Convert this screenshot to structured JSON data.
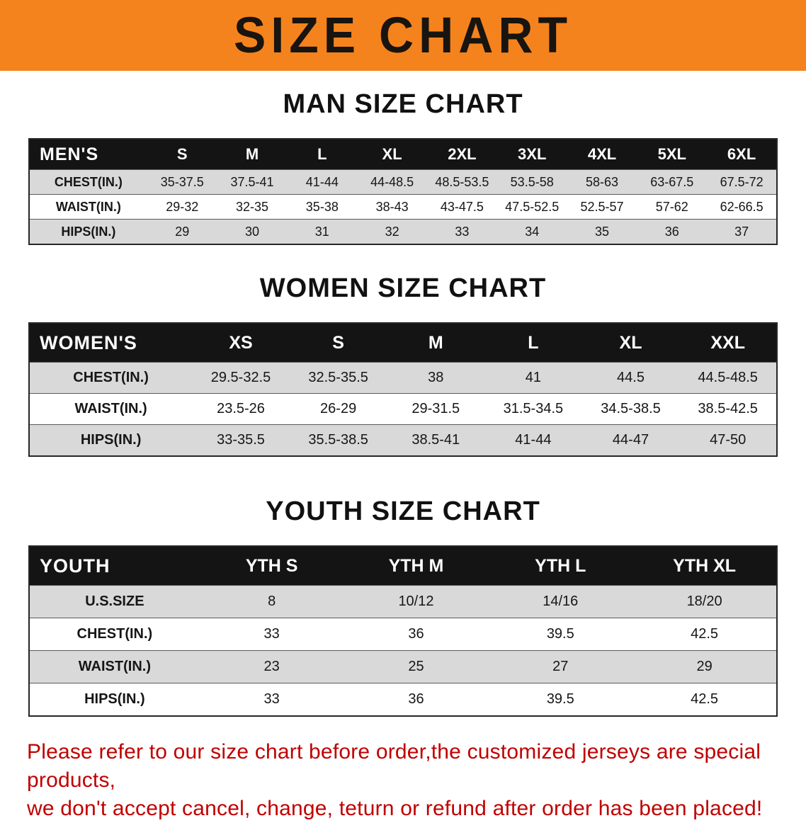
{
  "banner": {
    "title": "SIZE CHART",
    "bg_color": "#f5831d",
    "text_color": "#181410"
  },
  "sections": [
    {
      "heading": "MAN SIZE CHART",
      "table": {
        "header": [
          "MEN'S",
          "S",
          "M",
          "L",
          "XL",
          "2XL",
          "3XL",
          "4XL",
          "5XL",
          "6XL"
        ],
        "rows": [
          [
            "CHEST(IN.)",
            "35-37.5",
            "37.5-41",
            "41-44",
            "44-48.5",
            "48.5-53.5",
            "53.5-58",
            "58-63",
            "63-67.5",
            "67.5-72"
          ],
          [
            "WAIST(IN.)",
            "29-32",
            "32-35",
            "35-38",
            "38-43",
            "43-47.5",
            "47.5-52.5",
            "52.5-57",
            "57-62",
            "62-66.5"
          ],
          [
            "HIPS(IN.)",
            "29",
            "30",
            "31",
            "32",
            "33",
            "34",
            "35",
            "36",
            "37"
          ]
        ]
      }
    },
    {
      "heading": "WOMEN SIZE CHART",
      "table": {
        "header": [
          "WOMEN'S",
          "XS",
          "S",
          "M",
          "L",
          "XL",
          "XXL"
        ],
        "rows": [
          [
            "CHEST(IN.)",
            "29.5-32.5",
            "32.5-35.5",
            "38",
            "41",
            "44.5",
            "44.5-48.5"
          ],
          [
            "WAIST(IN.)",
            "23.5-26",
            "26-29",
            "29-31.5",
            "31.5-34.5",
            "34.5-38.5",
            "38.5-42.5"
          ],
          [
            "HIPS(IN.)",
            "33-35.5",
            "35.5-38.5",
            "38.5-41",
            "41-44",
            "44-47",
            "47-50"
          ]
        ]
      }
    },
    {
      "heading": "YOUTH SIZE CHART",
      "table": {
        "header": [
          "YOUTH",
          "YTH S",
          "YTH M",
          "YTH L",
          "YTH XL"
        ],
        "rows": [
          [
            "U.S.SIZE",
            "8",
            "10/12",
            "14/16",
            "18/20"
          ],
          [
            "CHEST(IN.)",
            "33",
            "36",
            "39.5",
            "42.5"
          ],
          [
            "WAIST(IN.)",
            "23",
            "25",
            "27",
            "29"
          ],
          [
            "HIPS(IN.)",
            "33",
            "36",
            "39.5",
            "42.5"
          ]
        ]
      }
    }
  ],
  "footer": {
    "line1": "Please refer to our size chart before order,the customized jerseys are special products,",
    "line2": "we don't accept cancel, change, teturn or refund after order has been placed!",
    "text_color": "#c00000"
  }
}
